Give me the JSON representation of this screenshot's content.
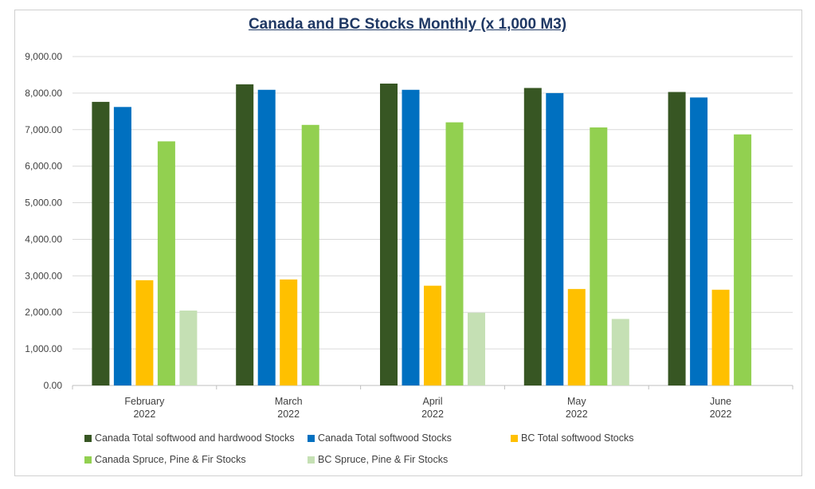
{
  "chart_data": {
    "type": "bar",
    "title": "Canada and BC Stocks  Monthly (x 1,000 M3)",
    "categories": [
      [
        "February",
        "2022"
      ],
      [
        "March",
        "2022"
      ],
      [
        "April",
        "2022"
      ],
      [
        "May",
        "2022"
      ],
      [
        "June",
        "2022"
      ]
    ],
    "ylim": [
      0,
      9000
    ],
    "yticks": [
      "0.00",
      "1,000.00",
      "2,000.00",
      "3,000.00",
      "4,000.00",
      "5,000.00",
      "6,000.00",
      "7,000.00",
      "8,000.00",
      "9,000.00"
    ],
    "ytick_values": [
      0,
      1000,
      2000,
      3000,
      4000,
      5000,
      6000,
      7000,
      8000,
      9000
    ],
    "grid": true,
    "legend_position": "bottom",
    "series": [
      {
        "name": "Canada Total softwood and hardwood Stocks",
        "color": "#375623",
        "values": [
          7760,
          8240,
          8260,
          8140,
          8030
        ]
      },
      {
        "name": "Canada Total softwood Stocks",
        "color": "#0070c0",
        "values": [
          7620,
          8090,
          8090,
          8000,
          7880
        ]
      },
      {
        "name": "BC Total softwood Stocks",
        "color": "#ffc000",
        "values": [
          2880,
          2900,
          2730,
          2640,
          2620
        ]
      },
      {
        "name": "Canada Spruce, Pine & Fir Stocks",
        "color": "#92d050",
        "values": [
          6680,
          7130,
          7200,
          7060,
          6870
        ]
      },
      {
        "name": "BC Spruce, Pine & Fir Stocks",
        "color": "#c5e0b4",
        "values": [
          2050,
          null,
          1990,
          1820,
          null
        ]
      }
    ]
  }
}
